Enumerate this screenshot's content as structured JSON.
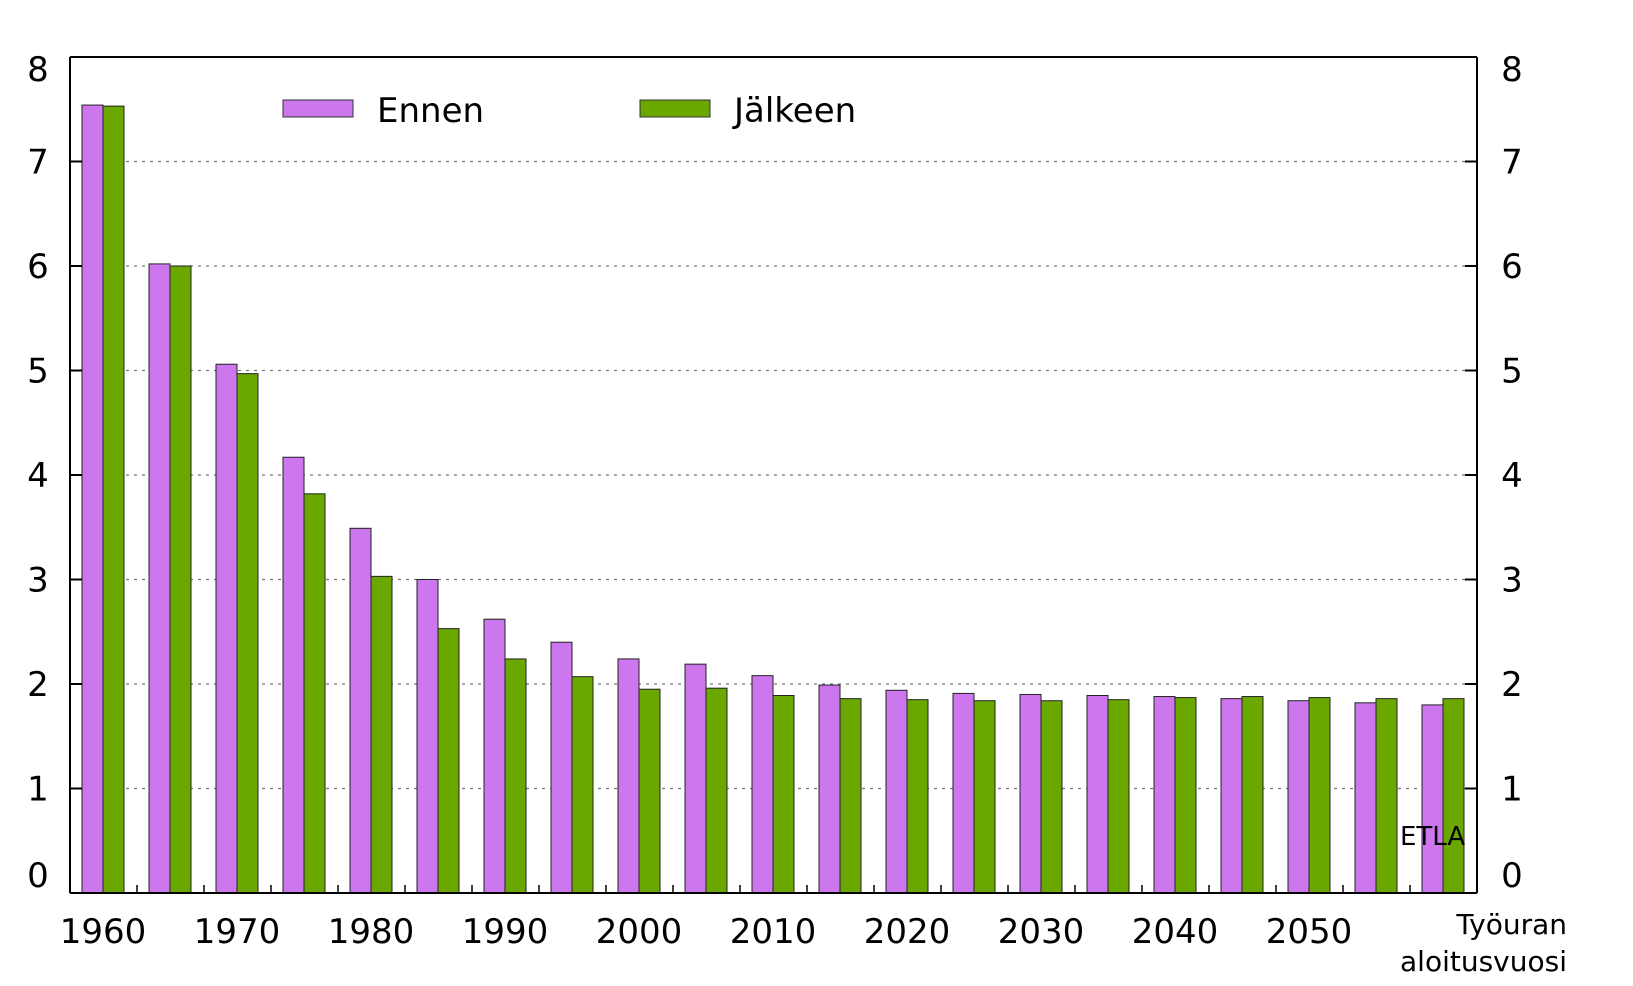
{
  "chart_data": {
    "type": "bar",
    "categories": [
      "1960",
      "1965",
      "1970",
      "1975",
      "1980",
      "1985",
      "1990",
      "1995",
      "2000",
      "2005",
      "2010",
      "2015",
      "2020",
      "2025",
      "2030",
      "2035",
      "2040",
      "2045",
      "2050",
      "2055",
      "2060"
    ],
    "x_tick_labels": [
      "1960",
      "1970",
      "1980",
      "1990",
      "2000",
      "2010",
      "2020",
      "2030",
      "2040",
      "2050"
    ],
    "series": [
      {
        "name": "Ennen",
        "color": "#cc77ee",
        "values": [
          7.54,
          6.02,
          5.06,
          4.17,
          3.49,
          3.0,
          2.62,
          2.4,
          2.24,
          2.19,
          2.08,
          1.99,
          1.94,
          1.91,
          1.9,
          1.89,
          1.88,
          1.86,
          1.84,
          1.82,
          1.8
        ]
      },
      {
        "name": "Jälkeen",
        "color": "#6aa800",
        "values": [
          7.53,
          6.0,
          4.97,
          3.82,
          3.03,
          2.53,
          2.24,
          2.07,
          1.95,
          1.96,
          1.89,
          1.86,
          1.85,
          1.84,
          1.84,
          1.85,
          1.87,
          1.88,
          1.87,
          1.86,
          1.86
        ]
      }
    ],
    "ylim": [
      0,
      8
    ],
    "y_ticks": [
      0,
      1,
      2,
      3,
      4,
      5,
      6,
      7,
      8
    ],
    "xlabel_lines": [
      "Työuran",
      "aloitusvuosi"
    ],
    "annotation": "ETLA",
    "grid": "horizontal dotted",
    "legend_position": "top-left",
    "right_axis_mirror": true
  }
}
